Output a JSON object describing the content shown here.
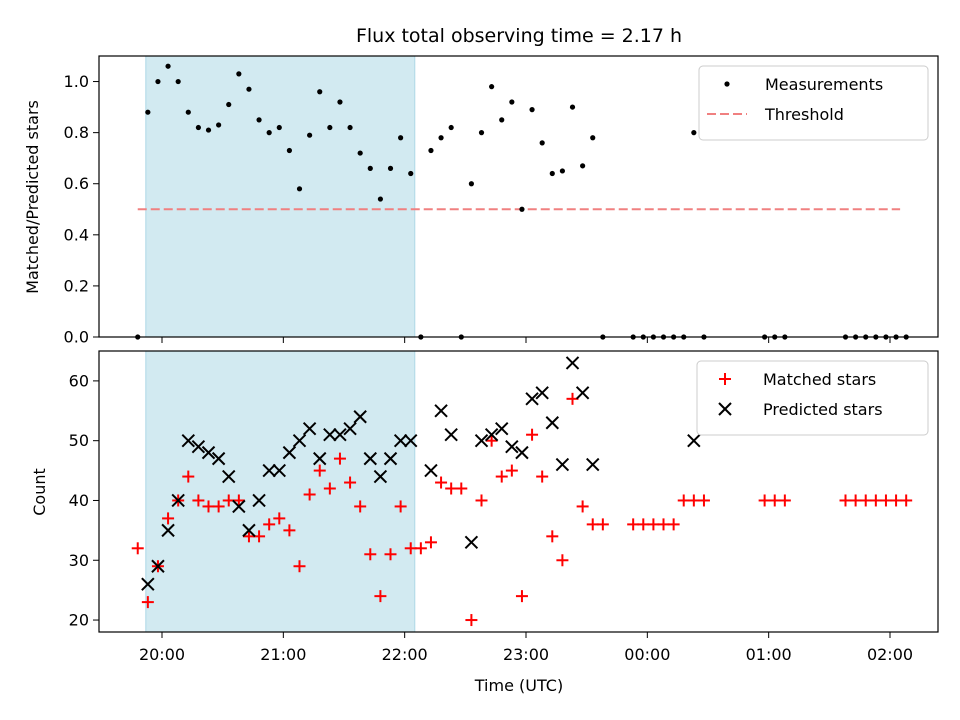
{
  "chart_data": {
    "type": "scatter",
    "title": "Flux total observing time = 2.17 h",
    "xlabel": "Time (UTC)",
    "x_ticks": [
      "20:00",
      "21:00",
      "22:00",
      "23:00",
      "00:00",
      "01:00",
      "02:00"
    ],
    "highlight_span": {
      "from": "19:52",
      "to": "22:05",
      "color": "#add8e6"
    },
    "top": {
      "ylabel": "Matched/Predicted stars",
      "ylim": [
        0,
        1.1
      ],
      "y_ticks": [
        "0.0",
        "0.2",
        "0.4",
        "0.6",
        "0.8",
        "1.0"
      ],
      "legend_position": "top-right",
      "threshold": {
        "name": "Threshold",
        "value": 0.5,
        "from": "19:48",
        "to": "02:05",
        "color": "#f08080",
        "style": "dashed"
      },
      "series": [
        {
          "name": "Measurements",
          "color": "#000000",
          "marker": "dot",
          "points": [
            [
              "19:48",
              0.0
            ],
            [
              "19:53",
              0.88
            ],
            [
              "19:58",
              1.0
            ],
            [
              "20:03",
              1.06
            ],
            [
              "20:08",
              1.0
            ],
            [
              "20:13",
              0.88
            ],
            [
              "20:18",
              0.82
            ],
            [
              "20:23",
              0.81
            ],
            [
              "20:28",
              0.83
            ],
            [
              "20:33",
              0.91
            ],
            [
              "20:38",
              1.03
            ],
            [
              "20:43",
              0.97
            ],
            [
              "20:48",
              0.85
            ],
            [
              "20:53",
              0.8
            ],
            [
              "20:58",
              0.82
            ],
            [
              "21:03",
              0.73
            ],
            [
              "21:08",
              0.58
            ],
            [
              "21:13",
              0.79
            ],
            [
              "21:18",
              0.96
            ],
            [
              "21:23",
              0.82
            ],
            [
              "21:28",
              0.92
            ],
            [
              "21:33",
              0.82
            ],
            [
              "21:38",
              0.72
            ],
            [
              "21:43",
              0.66
            ],
            [
              "21:48",
              0.54
            ],
            [
              "21:53",
              0.66
            ],
            [
              "21:58",
              0.78
            ],
            [
              "22:03",
              0.64
            ],
            [
              "22:08",
              0.0
            ],
            [
              "22:13",
              0.73
            ],
            [
              "22:18",
              0.78
            ],
            [
              "22:23",
              0.82
            ],
            [
              "22:28",
              0.0
            ],
            [
              "22:33",
              0.6
            ],
            [
              "22:38",
              0.8
            ],
            [
              "22:43",
              0.98
            ],
            [
              "22:48",
              0.85
            ],
            [
              "22:53",
              0.92
            ],
            [
              "22:58",
              0.5
            ],
            [
              "23:03",
              0.89
            ],
            [
              "23:08",
              0.76
            ],
            [
              "23:13",
              0.64
            ],
            [
              "23:18",
              0.65
            ],
            [
              "23:23",
              0.9
            ],
            [
              "23:28",
              0.67
            ],
            [
              "23:33",
              0.78
            ],
            [
              "23:38",
              0.0
            ],
            [
              "23:53",
              0.0
            ],
            [
              "23:58",
              0.0
            ],
            [
              "00:03",
              0.0
            ],
            [
              "00:08",
              0.0
            ],
            [
              "00:13",
              0.0
            ],
            [
              "00:18",
              0.0
            ],
            [
              "00:23",
              0.8
            ],
            [
              "00:28",
              0.0
            ],
            [
              "00:58",
              0.0
            ],
            [
              "01:03",
              0.0
            ],
            [
              "01:08",
              0.0
            ],
            [
              "01:38",
              0.0
            ],
            [
              "01:43",
              0.0
            ],
            [
              "01:48",
              0.0
            ],
            [
              "01:53",
              0.0
            ],
            [
              "01:58",
              0.0
            ],
            [
              "02:03",
              0.0
            ],
            [
              "02:08",
              0.0
            ]
          ]
        }
      ]
    },
    "bottom": {
      "ylabel": "Count",
      "ylim": [
        18,
        65
      ],
      "y_ticks": [
        "20",
        "30",
        "40",
        "50",
        "60"
      ],
      "legend_position": "top-right",
      "series": [
        {
          "name": "Matched stars",
          "color": "#ff0000",
          "marker": "plus",
          "points": [
            [
              "19:48",
              32
            ],
            [
              "19:53",
              23
            ],
            [
              "19:58",
              29
            ],
            [
              "20:03",
              37
            ],
            [
              "20:08",
              40
            ],
            [
              "20:13",
              44
            ],
            [
              "20:18",
              40
            ],
            [
              "20:23",
              39
            ],
            [
              "20:28",
              39
            ],
            [
              "20:33",
              40
            ],
            [
              "20:38",
              40
            ],
            [
              "20:43",
              34
            ],
            [
              "20:48",
              34
            ],
            [
              "20:53",
              36
            ],
            [
              "20:58",
              37
            ],
            [
              "21:03",
              35
            ],
            [
              "21:08",
              29
            ],
            [
              "21:13",
              41
            ],
            [
              "21:18",
              45
            ],
            [
              "21:23",
              42
            ],
            [
              "21:28",
              47
            ],
            [
              "21:33",
              43
            ],
            [
              "21:38",
              39
            ],
            [
              "21:43",
              31
            ],
            [
              "21:48",
              24
            ],
            [
              "21:53",
              31
            ],
            [
              "21:58",
              39
            ],
            [
              "22:03",
              32
            ],
            [
              "22:08",
              32
            ],
            [
              "22:13",
              33
            ],
            [
              "22:18",
              43
            ],
            [
              "22:23",
              42
            ],
            [
              "22:28",
              42
            ],
            [
              "22:33",
              20
            ],
            [
              "22:38",
              40
            ],
            [
              "22:43",
              50
            ],
            [
              "22:48",
              44
            ],
            [
              "22:53",
              45
            ],
            [
              "22:58",
              24
            ],
            [
              "23:03",
              51
            ],
            [
              "23:08",
              44
            ],
            [
              "23:13",
              34
            ],
            [
              "23:18",
              30
            ],
            [
              "23:23",
              57
            ],
            [
              "23:28",
              39
            ],
            [
              "23:33",
              36
            ],
            [
              "23:38",
              36
            ],
            [
              "23:53",
              36
            ],
            [
              "23:58",
              36
            ],
            [
              "00:03",
              36
            ],
            [
              "00:08",
              36
            ],
            [
              "00:13",
              36
            ],
            [
              "00:18",
              40
            ],
            [
              "00:23",
              40
            ],
            [
              "00:28",
              40
            ],
            [
              "00:58",
              40
            ],
            [
              "01:03",
              40
            ],
            [
              "01:08",
              40
            ],
            [
              "01:38",
              40
            ],
            [
              "01:43",
              40
            ],
            [
              "01:48",
              40
            ],
            [
              "01:53",
              40
            ],
            [
              "01:58",
              40
            ],
            [
              "02:03",
              40
            ],
            [
              "02:08",
              40
            ]
          ]
        },
        {
          "name": "Predicted stars",
          "color": "#000000",
          "marker": "x",
          "points": [
            [
              "19:53",
              26
            ],
            [
              "19:58",
              29
            ],
            [
              "20:03",
              35
            ],
            [
              "20:08",
              40
            ],
            [
              "20:13",
              50
            ],
            [
              "20:18",
              49
            ],
            [
              "20:23",
              48
            ],
            [
              "20:28",
              47
            ],
            [
              "20:33",
              44
            ],
            [
              "20:38",
              39
            ],
            [
              "20:43",
              35
            ],
            [
              "20:48",
              40
            ],
            [
              "20:53",
              45
            ],
            [
              "20:58",
              45
            ],
            [
              "21:03",
              48
            ],
            [
              "21:08",
              50
            ],
            [
              "21:13",
              52
            ],
            [
              "21:18",
              47
            ],
            [
              "21:23",
              51
            ],
            [
              "21:28",
              51
            ],
            [
              "21:33",
              52
            ],
            [
              "21:38",
              54
            ],
            [
              "21:43",
              47
            ],
            [
              "21:48",
              44
            ],
            [
              "21:53",
              47
            ],
            [
              "21:58",
              50
            ],
            [
              "22:03",
              50
            ],
            [
              "22:13",
              45
            ],
            [
              "22:18",
              55
            ],
            [
              "22:23",
              51
            ],
            [
              "22:33",
              33
            ],
            [
              "22:38",
              50
            ],
            [
              "22:43",
              51
            ],
            [
              "22:48",
              52
            ],
            [
              "22:53",
              49
            ],
            [
              "22:58",
              48
            ],
            [
              "23:03",
              57
            ],
            [
              "23:08",
              58
            ],
            [
              "23:13",
              53
            ],
            [
              "23:18",
              46
            ],
            [
              "23:23",
              63
            ],
            [
              "23:28",
              58
            ],
            [
              "23:33",
              46
            ],
            [
              "00:23",
              50
            ]
          ]
        }
      ]
    }
  }
}
